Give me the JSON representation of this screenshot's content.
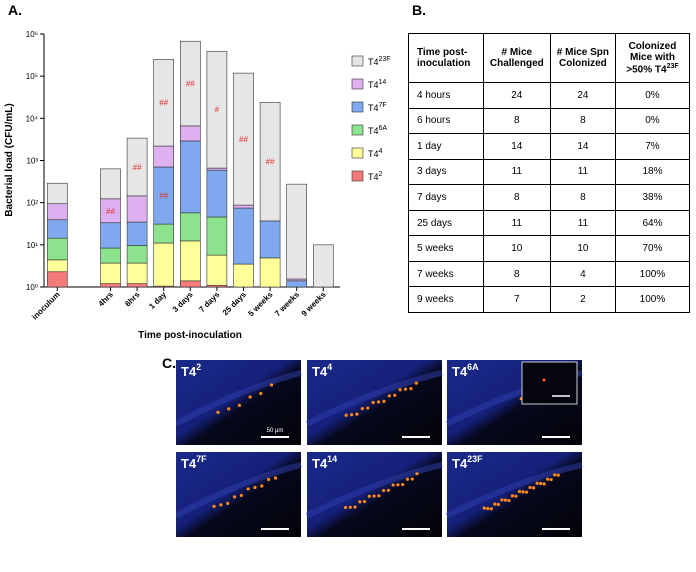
{
  "panel_labels": [
    "A.",
    "B.",
    "C."
  ],
  "chart_data": {
    "type": "stacked_bar",
    "ylabel": "Bacterial load (CFU/mL)",
    "xlabel": "Time post-inoculation",
    "log_scale": true,
    "ylim": [
      1,
      1000000
    ],
    "yticks": [
      {
        "value": 1,
        "label": "10⁰"
      },
      {
        "value": 10,
        "label": "10¹"
      },
      {
        "value": 100,
        "label": "10²"
      },
      {
        "value": 1000,
        "label": "10³"
      },
      {
        "value": 10000,
        "label": "10⁴"
      },
      {
        "value": 100000,
        "label": "10⁵"
      },
      {
        "value": 1000000,
        "label": "10⁶"
      }
    ],
    "categories": [
      "inoculum",
      null,
      "4hrs",
      "6hrs",
      "1 day",
      "3 days",
      "7 days",
      "25 days",
      "5 weeks",
      "7 weeks",
      "9 weeks"
    ],
    "series": [
      {
        "name": "T4",
        "superscript": "2",
        "color": "#f47a7c",
        "values": [
          2.3,
          null,
          1.2,
          1.2,
          1.05,
          1.4,
          1.1,
          0,
          0,
          0,
          0
        ]
      },
      {
        "name": "T4",
        "superscript": "4",
        "color": "#ffff99",
        "values": [
          2.1,
          null,
          2.5,
          2.5,
          10,
          11,
          4.6,
          3.5,
          4.9,
          0,
          0
        ]
      },
      {
        "name": "T4",
        "superscript": "6A",
        "color": "#8de38d",
        "values": [
          10,
          null,
          4.7,
          6,
          20,
          45,
          40,
          0,
          0,
          0,
          0
        ]
      },
      {
        "name": "T4",
        "superscript": "7F",
        "color": "#80a8ee",
        "values": [
          25,
          null,
          25,
          25,
          670,
          2850,
          545,
          71,
          32,
          1.4,
          0
        ],
        "annotations": [
          null,
          null,
          null,
          null,
          "##",
          null,
          null,
          null,
          null,
          null,
          null
        ]
      },
      {
        "name": "T4",
        "superscript": "14",
        "color": "#ddb0f0",
        "values": [
          55,
          null,
          90,
          110,
          1500,
          3700,
          70,
          13,
          0,
          0.15,
          0
        ],
        "annotations": [
          null,
          null,
          "##",
          null,
          null,
          null,
          null,
          null,
          null,
          null,
          null
        ]
      },
      {
        "name": "T4",
        "superscript": "23F",
        "color": "#e6e6e6",
        "values": [
          195,
          null,
          510,
          3250,
          248000,
          668000,
          389000,
          118000,
          24000,
          273,
          10
        ],
        "annotations": [
          null,
          null,
          null,
          "##",
          "##",
          "##",
          "#",
          "##",
          "##",
          null,
          null
        ]
      }
    ]
  },
  "table": {
    "header": [
      "Time post-inoculation",
      "# Mice Challenged",
      "# Mice Spn Colonized",
      "Colonized Mice with >50% T4"
    ],
    "header_superscript": "23F",
    "rows": [
      [
        "4 hours",
        "24",
        "24",
        "0%"
      ],
      [
        "6 hours",
        "8",
        "8",
        "0%"
      ],
      [
        "1 day",
        "14",
        "14",
        "7%"
      ],
      [
        "3 days",
        "11",
        "11",
        "18%"
      ],
      [
        "7 days",
        "8",
        "8",
        "38%"
      ],
      [
        "25 days",
        "11",
        "11",
        "64%"
      ],
      [
        "5 weeks",
        "10",
        "10",
        "70%"
      ],
      [
        "7 weeks",
        "8",
        "4",
        "100%"
      ],
      [
        "9 weeks",
        "7",
        "2",
        "100%"
      ]
    ]
  },
  "images": {
    "panels": [
      {
        "label": "T4",
        "superscript": "2"
      },
      {
        "label": "T4",
        "superscript": "4"
      },
      {
        "label": "T4",
        "superscript": "6A"
      },
      {
        "label": "T4",
        "superscript": "7F"
      },
      {
        "label": "T4",
        "superscript": "14"
      },
      {
        "label": "T4",
        "superscript": "23F"
      }
    ],
    "scale_bar": "50 µm"
  }
}
